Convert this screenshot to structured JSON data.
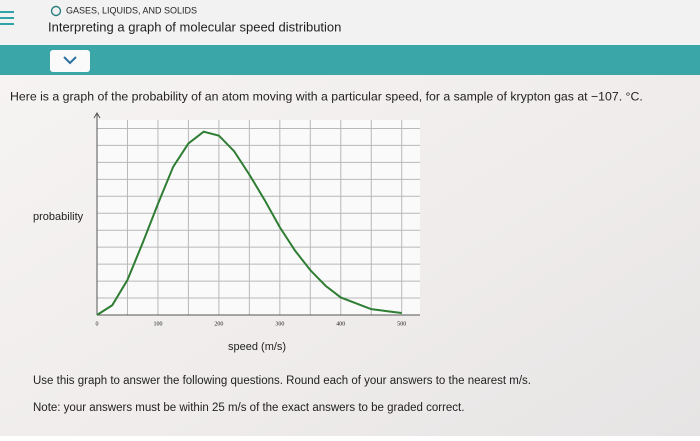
{
  "header": {
    "topic": "GASES, LIQUIDS, AND SOLIDS",
    "title": "Interpreting a graph of molecular speed distribution"
  },
  "intro": "Here is a graph of the probability of an atom moving with a particular speed, for a sample of krypton gas at −107. °C.",
  "chart_data": {
    "type": "line",
    "x": [
      0,
      25,
      50,
      75,
      100,
      125,
      150,
      175,
      200,
      225,
      250,
      275,
      300,
      325,
      350,
      375,
      400,
      425,
      450,
      475,
      500
    ],
    "values": [
      0,
      0.05,
      0.18,
      0.37,
      0.57,
      0.76,
      0.88,
      0.94,
      0.92,
      0.84,
      0.72,
      0.59,
      0.45,
      0.33,
      0.23,
      0.15,
      0.09,
      0.06,
      0.03,
      0.02,
      0.01
    ],
    "color": "#2e7d32",
    "xlim": [
      0,
      530
    ],
    "xticks": [
      0,
      100,
      200,
      300,
      400,
      500
    ],
    "ylim": [
      0,
      1
    ],
    "xlabel": "speed (m/s)",
    "ylabel": "probability"
  },
  "questions": {
    "instruction": "Use this graph to answer the following questions. Round each of your answers to the nearest m/s.",
    "note": "Note: your answers must be within 25 m/s of the exact answers to be graded correct."
  }
}
